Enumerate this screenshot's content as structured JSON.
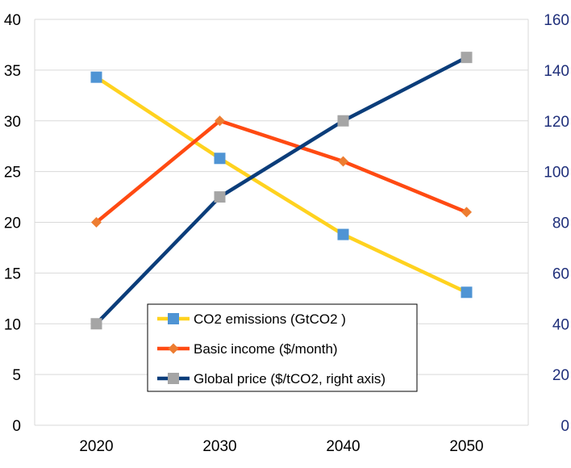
{
  "chart_data": {
    "type": "line",
    "categories": [
      "2020",
      "2030",
      "2040",
      "2050"
    ],
    "left_axis": {
      "ylim": [
        0,
        40
      ],
      "ticks": [
        0,
        5,
        10,
        15,
        20,
        25,
        30,
        35,
        40
      ],
      "color": "#000000"
    },
    "right_axis": {
      "ylim": [
        0,
        160
      ],
      "ticks": [
        0,
        20,
        40,
        60,
        80,
        100,
        120,
        140,
        160
      ],
      "color": "#1f2f7a"
    },
    "grid": "horizontal",
    "legend_position": "bottom-center",
    "series": [
      {
        "name": "CO2 emissions (GtCO2 )",
        "axis": "left",
        "values": [
          34.3,
          26.3,
          18.8,
          13.1
        ],
        "line_color": "#ffd21f",
        "marker": "square",
        "marker_color": "#4f94d4"
      },
      {
        "name": "Basic income ($/month)",
        "axis": "left",
        "values": [
          20,
          30,
          26,
          21
        ],
        "line_color": "#ff4a12",
        "marker": "diamond",
        "marker_color": "#ed7d31"
      },
      {
        "name": "Global price ($/tCO2, right axis)",
        "axis": "right",
        "values": [
          40,
          90,
          120,
          145
        ],
        "line_color": "#0b3d7a",
        "marker": "square",
        "marker_color": "#a5a5a5"
      }
    ]
  }
}
